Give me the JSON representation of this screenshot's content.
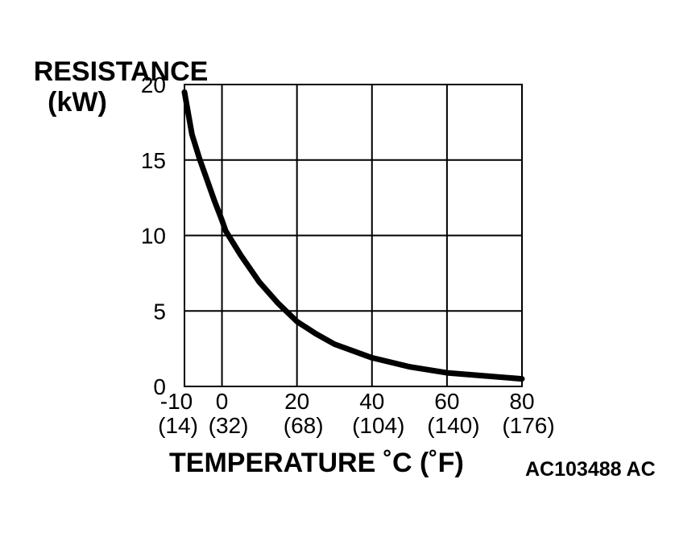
{
  "chart_data": {
    "type": "line",
    "ylabel_line1": "RESISTANCE",
    "ylabel_line2": "(kW)",
    "xlabel": "TEMPERATURE ˚C (˚F)",
    "figure_id": "AC103488 AC",
    "xlim": [
      -10,
      80
    ],
    "ylim": [
      0,
      20
    ],
    "grid": true,
    "x_ticks": [
      -10,
      0,
      20,
      40,
      60,
      80
    ],
    "x_tick_labels": [
      "-10",
      "0",
      "20",
      "40",
      "60",
      "80"
    ],
    "x_tick_sublabels": [
      "(14)",
      "(32)",
      "(68)",
      "(104)",
      "(140)",
      "(176)"
    ],
    "y_ticks": [
      0,
      5,
      10,
      15,
      20
    ],
    "y_tick_labels": [
      "0",
      "5",
      "10",
      "15",
      "20"
    ],
    "series": [
      {
        "color": "#000000",
        "x": [
          -10,
          -8,
          -6,
          -4,
          -2,
          0,
          1,
          5,
          10,
          15,
          20,
          25,
          30,
          40,
          50,
          60,
          70,
          80
        ],
        "y": [
          19.5,
          16.7,
          15.1,
          13.7,
          12.3,
          11.0,
          10.3,
          8.7,
          6.9,
          5.5,
          4.3,
          3.5,
          2.8,
          1.9,
          1.3,
          0.9,
          0.7,
          0.5
        ]
      }
    ]
  }
}
